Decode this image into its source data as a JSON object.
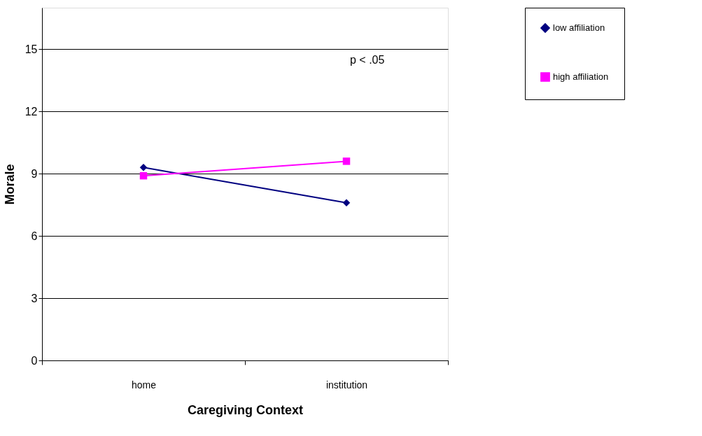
{
  "chart_data": {
    "type": "line",
    "xlabel": "Caregiving Context",
    "ylabel": "Morale",
    "categories": [
      "home",
      "institution"
    ],
    "series": [
      {
        "name": "low affiliation",
        "color": "#000080",
        "marker": "diamond",
        "values": [
          9.3,
          7.6
        ]
      },
      {
        "name": "high affiliation",
        "color": "#ff00ff",
        "marker": "square",
        "values": [
          8.9,
          9.6
        ]
      }
    ],
    "ylim": [
      0,
      17
    ],
    "yticks": [
      0,
      3,
      6,
      9,
      12,
      15
    ],
    "grid": "y",
    "legend": "right",
    "annotations": [
      "p < .05"
    ]
  }
}
